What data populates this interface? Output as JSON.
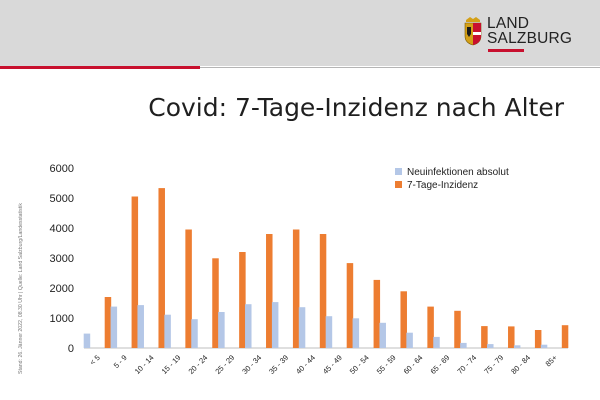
{
  "header": {
    "logo_line1": "LAND",
    "logo_line2": "SALZBURG"
  },
  "slide_title": "Covid: 7-Tage-Inzidenz nach Alter",
  "side_note": "Stand: 26. Jänner 2022, 08.30 Uhr | Quelle: Land Salzburg/Landesstatistik",
  "colors": {
    "brand_red": "#c8102e",
    "header_gray": "#d9d9d9",
    "series_absolut": "#b4c7e7",
    "series_inzidenz": "#ed7d31"
  },
  "chart_data": {
    "type": "bar",
    "categories": [
      "< 5",
      "5 - 9",
      "10 - 14",
      "15 - 19",
      "20 - 24",
      "25 - 29",
      "30 - 34",
      "35 - 39",
      "40 - 44",
      "45 - 49",
      "50 - 54",
      "55 - 59",
      "60 - 64",
      "65 - 69",
      "70 - 74",
      "75 - 79",
      "80 - 84",
      "85+"
    ],
    "series": [
      {
        "name": "Neuinfektionen absolut",
        "color": "#b4c7e7",
        "values": [
          480,
          1380,
          1430,
          1110,
          960,
          1200,
          1460,
          1530,
          1360,
          1060,
          990,
          840,
          510,
          370,
          170,
          130,
          90,
          110
        ]
      },
      {
        "name": "7-Tage-Inzidenz",
        "color": "#ed7d31",
        "values": [
          1700,
          5050,
          5330,
          3950,
          2990,
          3200,
          3800,
          3950,
          3800,
          2830,
          2270,
          1890,
          1380,
          1240,
          730,
          720,
          600,
          760
        ]
      }
    ],
    "yticks": [
      "0",
      "1000",
      "2000",
      "3000",
      "4000",
      "5000",
      "6000"
    ],
    "ylim": [
      0,
      6000
    ],
    "grid": false,
    "legend_position": "top-right"
  }
}
